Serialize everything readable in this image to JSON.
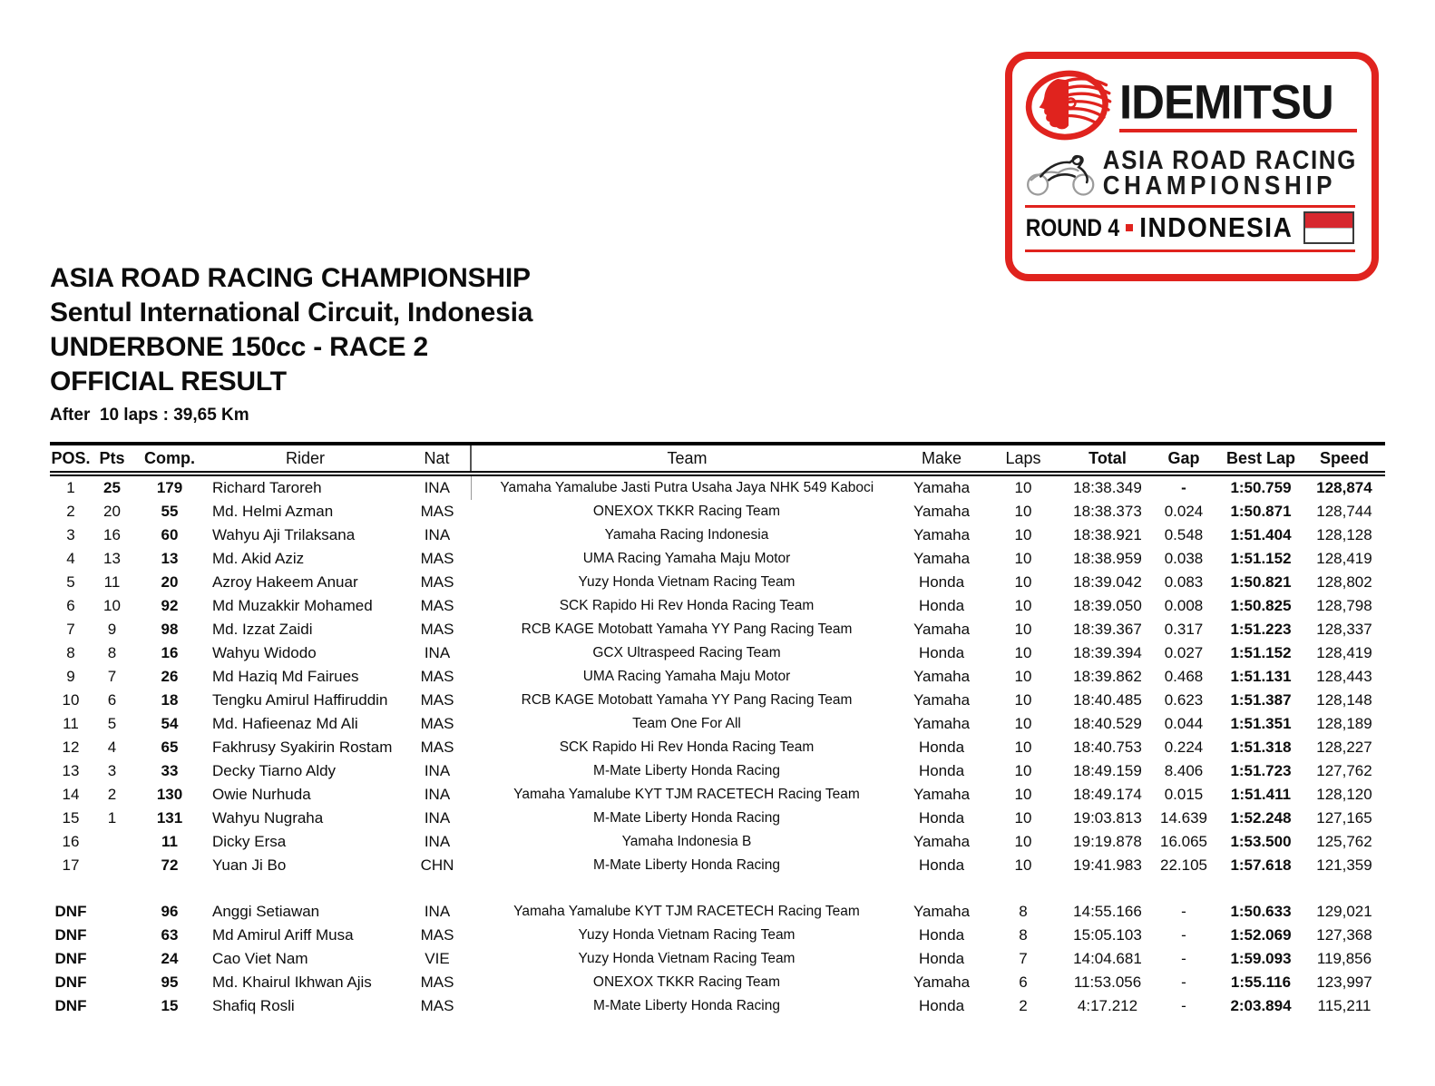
{
  "logo": {
    "brand": "IDEMITSU",
    "series_line1": "ASIA ROAD RACING",
    "series_line2": "CHAMPIONSHIP",
    "round": "ROUND 4",
    "country": "INDONESIA",
    "brand_red": "#e0231e",
    "flag_red": "#d7282f"
  },
  "title": {
    "line1": "ASIA ROAD RACING CHAMPIONSHIP",
    "line2": "Sentul International Circuit, Indonesia",
    "line3": "UNDERBONE 150cc - RACE 2",
    "line4": "OFFICIAL RESULT",
    "subtitle": "After  10 laps : 39,65 Km"
  },
  "table": {
    "headers": [
      "POS.",
      "Pts",
      "Comp.",
      "Rider",
      "Nat",
      "Team",
      "Make",
      "Laps",
      "Total",
      "Gap",
      "Best Lap",
      "Speed"
    ],
    "rows": [
      {
        "pos": "1",
        "pts": "25",
        "comp": "179",
        "rider": "Richard Taroreh",
        "nat": "INA",
        "team": "Yamaha Yamalube Jasti Putra Usaha Jaya NHK 549 Kaboci",
        "make": "Yamaha",
        "laps": "10",
        "total": "18:38.349",
        "gap": "-",
        "best_lap": "1:50.759",
        "speed": "128,874"
      },
      {
        "pos": "2",
        "pts": "20",
        "comp": "55",
        "rider": "Md. Helmi Azman",
        "nat": "MAS",
        "team": "ONEXOX TKKR Racing Team",
        "make": "Yamaha",
        "laps": "10",
        "total": "18:38.373",
        "gap": "0.024",
        "best_lap": "1:50.871",
        "speed": "128,744"
      },
      {
        "pos": "3",
        "pts": "16",
        "comp": "60",
        "rider": "Wahyu Aji Trilaksana",
        "nat": "INA",
        "team": "Yamaha Racing Indonesia",
        "make": "Yamaha",
        "laps": "10",
        "total": "18:38.921",
        "gap": "0.548",
        "best_lap": "1:51.404",
        "speed": "128,128"
      },
      {
        "pos": "4",
        "pts": "13",
        "comp": "13",
        "rider": "Md. Akid Aziz",
        "nat": "MAS",
        "team": "UMA Racing Yamaha Maju Motor",
        "make": "Yamaha",
        "laps": "10",
        "total": "18:38.959",
        "gap": "0.038",
        "best_lap": "1:51.152",
        "speed": "128,419"
      },
      {
        "pos": "5",
        "pts": "11",
        "comp": "20",
        "rider": "Azroy Hakeem Anuar",
        "nat": "MAS",
        "team": "Yuzy Honda Vietnam Racing Team",
        "make": "Honda",
        "laps": "10",
        "total": "18:39.042",
        "gap": "0.083",
        "best_lap": "1:50.821",
        "speed": "128,802"
      },
      {
        "pos": "6",
        "pts": "10",
        "comp": "92",
        "rider": "Md Muzakkir Mohamed",
        "nat": "MAS",
        "team": "SCK Rapido Hi Rev Honda Racing Team",
        "make": "Honda",
        "laps": "10",
        "total": "18:39.050",
        "gap": "0.008",
        "best_lap": "1:50.825",
        "speed": "128,798"
      },
      {
        "pos": "7",
        "pts": "9",
        "comp": "98",
        "rider": "Md. Izzat Zaidi",
        "nat": "MAS",
        "team": "RCB KAGE Motobatt Yamaha YY Pang Racing Team",
        "make": "Yamaha",
        "laps": "10",
        "total": "18:39.367",
        "gap": "0.317",
        "best_lap": "1:51.223",
        "speed": "128,337"
      },
      {
        "pos": "8",
        "pts": "8",
        "comp": "16",
        "rider": "Wahyu Widodo",
        "nat": "INA",
        "team": "GCX Ultraspeed Racing Team",
        "make": "Honda",
        "laps": "10",
        "total": "18:39.394",
        "gap": "0.027",
        "best_lap": "1:51.152",
        "speed": "128,419"
      },
      {
        "pos": "9",
        "pts": "7",
        "comp": "26",
        "rider": "Md Haziq Md Fairues",
        "nat": "MAS",
        "team": "UMA Racing Yamaha Maju Motor",
        "make": "Yamaha",
        "laps": "10",
        "total": "18:39.862",
        "gap": "0.468",
        "best_lap": "1:51.131",
        "speed": "128,443"
      },
      {
        "pos": "10",
        "pts": "6",
        "comp": "18",
        "rider": "Tengku Amirul Haffiruddin",
        "nat": "MAS",
        "team": "RCB KAGE Motobatt Yamaha YY Pang Racing Team",
        "make": "Yamaha",
        "laps": "10",
        "total": "18:40.485",
        "gap": "0.623",
        "best_lap": "1:51.387",
        "speed": "128,148"
      },
      {
        "pos": "11",
        "pts": "5",
        "comp": "54",
        "rider": "Md. Hafieenaz Md Ali",
        "nat": "MAS",
        "team": "Team One For All",
        "make": "Yamaha",
        "laps": "10",
        "total": "18:40.529",
        "gap": "0.044",
        "best_lap": "1:51.351",
        "speed": "128,189"
      },
      {
        "pos": "12",
        "pts": "4",
        "comp": "65",
        "rider": "Fakhrusy Syakirin Rostam",
        "nat": "MAS",
        "team": "SCK Rapido Hi Rev Honda Racing Team",
        "make": "Honda",
        "laps": "10",
        "total": "18:40.753",
        "gap": "0.224",
        "best_lap": "1:51.318",
        "speed": "128,227"
      },
      {
        "pos": "13",
        "pts": "3",
        "comp": "33",
        "rider": "Decky Tiarno Aldy",
        "nat": "INA",
        "team": "M-Mate Liberty Honda Racing",
        "make": "Honda",
        "laps": "10",
        "total": "18:49.159",
        "gap": "8.406",
        "best_lap": "1:51.723",
        "speed": "127,762"
      },
      {
        "pos": "14",
        "pts": "2",
        "comp": "130",
        "rider": "Owie Nurhuda",
        "nat": "INA",
        "team": "Yamaha Yamalube KYT TJM RACETECH Racing Team",
        "make": "Yamaha",
        "laps": "10",
        "total": "18:49.174",
        "gap": "0.015",
        "best_lap": "1:51.411",
        "speed": "128,120"
      },
      {
        "pos": "15",
        "pts": "1",
        "comp": "131",
        "rider": "Wahyu Nugraha",
        "nat": "INA",
        "team": "M-Mate Liberty Honda Racing",
        "make": "Honda",
        "laps": "10",
        "total": "19:03.813",
        "gap": "14.639",
        "best_lap": "1:52.248",
        "speed": "127,165"
      },
      {
        "pos": "16",
        "pts": "",
        "comp": "11",
        "rider": "Dicky Ersa",
        "nat": "INA",
        "team": "Yamaha Indonesia B",
        "make": "Yamaha",
        "laps": "10",
        "total": "19:19.878",
        "gap": "16.065",
        "best_lap": "1:53.500",
        "speed": "125,762"
      },
      {
        "pos": "17",
        "pts": "",
        "comp": "72",
        "rider": "Yuan Ji Bo",
        "nat": "CHN",
        "team": "M-Mate Liberty Honda Racing",
        "make": "Honda",
        "laps": "10",
        "total": "19:41.983",
        "gap": "22.105",
        "best_lap": "1:57.618",
        "speed": "121,359"
      }
    ],
    "dnf_rows": [
      {
        "pos": "DNF",
        "pts": "",
        "comp": "96",
        "rider": "Anggi Setiawan",
        "nat": "INA",
        "team": "Yamaha Yamalube KYT TJM RACETECH Racing Team",
        "make": "Yamaha",
        "laps": "8",
        "total": "14:55.166",
        "gap": "-",
        "best_lap": "1:50.633",
        "speed": "129,021"
      },
      {
        "pos": "DNF",
        "pts": "",
        "comp": "63",
        "rider": "Md Amirul Ariff Musa",
        "nat": "MAS",
        "team": "Yuzy Honda Vietnam Racing Team",
        "make": "Honda",
        "laps": "8",
        "total": "15:05.103",
        "gap": "-",
        "best_lap": "1:52.069",
        "speed": "127,368"
      },
      {
        "pos": "DNF",
        "pts": "",
        "comp": "24",
        "rider": "Cao Viet Nam",
        "nat": "VIE",
        "team": "Yuzy Honda Vietnam Racing Team",
        "make": "Honda",
        "laps": "7",
        "total": "14:04.681",
        "gap": "-",
        "best_lap": "1:59.093",
        "speed": "119,856"
      },
      {
        "pos": "DNF",
        "pts": "",
        "comp": "95",
        "rider": "Md. Khairul Ikhwan Ajis",
        "nat": "MAS",
        "team": "ONEXOX TKKR Racing Team",
        "make": "Yamaha",
        "laps": "6",
        "total": "11:53.056",
        "gap": "-",
        "best_lap": "1:55.116",
        "speed": "123,997"
      },
      {
        "pos": "DNF",
        "pts": "",
        "comp": "15",
        "rider": "Shafiq Rosli",
        "nat": "MAS",
        "team": "M-Mate Liberty Honda Racing",
        "make": "Honda",
        "laps": "2",
        "total": "4:17.212",
        "gap": "-",
        "best_lap": "2:03.894",
        "speed": "115,211"
      }
    ]
  }
}
